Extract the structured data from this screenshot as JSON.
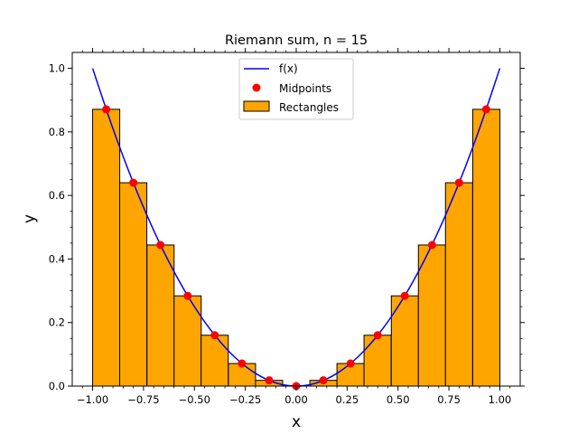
{
  "chart_data": {
    "type": "bar",
    "title": "Riemann sum, n = 15",
    "xlabel": "x",
    "ylabel": "y",
    "xlim": [
      -1.1,
      1.1
    ],
    "ylim": [
      0.0,
      1.05
    ],
    "x_ticks": [
      -1.0,
      -0.75,
      -0.5,
      -0.25,
      0.0,
      0.25,
      0.5,
      0.75,
      1.0
    ],
    "x_tick_labels": [
      "−1.00",
      "−0.75",
      "−0.50",
      "−0.25",
      "0.00",
      "0.25",
      "0.50",
      "0.75",
      "1.00"
    ],
    "y_ticks": [
      0.0,
      0.2,
      0.4,
      0.6,
      0.8,
      1.0
    ],
    "y_tick_labels": [
      "0.0",
      "0.2",
      "0.4",
      "0.6",
      "0.8",
      "1.0"
    ],
    "grid": false,
    "legend_position": "top-center",
    "legend": {
      "curve": "f(x)",
      "points": "Midpoints",
      "bars": "Rectangles"
    },
    "curve": {
      "name": "f(x)",
      "x": [
        -1.0,
        -0.9,
        -0.8,
        -0.7,
        -0.6,
        -0.5,
        -0.4,
        -0.3,
        -0.2,
        -0.1,
        0.0,
        0.1,
        0.2,
        0.3,
        0.4,
        0.5,
        0.6,
        0.7,
        0.8,
        0.9,
        1.0
      ],
      "y": [
        1.0,
        0.81,
        0.64,
        0.49,
        0.36,
        0.25,
        0.16,
        0.09,
        0.04,
        0.01,
        0.0,
        0.01,
        0.04,
        0.09,
        0.16,
        0.25,
        0.36,
        0.49,
        0.64,
        0.81,
        1.0
      ],
      "color": "#0000ff"
    },
    "midpoints": {
      "name": "Midpoints",
      "x": [
        -0.933,
        -0.8,
        -0.667,
        -0.533,
        -0.4,
        -0.267,
        -0.133,
        0.0,
        0.133,
        0.267,
        0.4,
        0.533,
        0.667,
        0.8,
        0.933
      ],
      "y": [
        0.871,
        0.64,
        0.444,
        0.284,
        0.16,
        0.071,
        0.018,
        0.0,
        0.018,
        0.071,
        0.16,
        0.284,
        0.444,
        0.64,
        0.871
      ],
      "color": "#ff0000"
    },
    "rectangles": {
      "name": "Rectangles",
      "x_left": [
        -1.0,
        -0.867,
        -0.733,
        -0.6,
        -0.467,
        -0.333,
        -0.2,
        -0.067,
        0.067,
        0.2,
        0.333,
        0.467,
        0.6,
        0.733,
        0.867
      ],
      "width": 0.1333,
      "heights": [
        0.871,
        0.64,
        0.444,
        0.284,
        0.16,
        0.071,
        0.018,
        0.0,
        0.018,
        0.071,
        0.16,
        0.284,
        0.444,
        0.64,
        0.871
      ],
      "fill": "#ffa500",
      "edge": "#000000"
    }
  }
}
